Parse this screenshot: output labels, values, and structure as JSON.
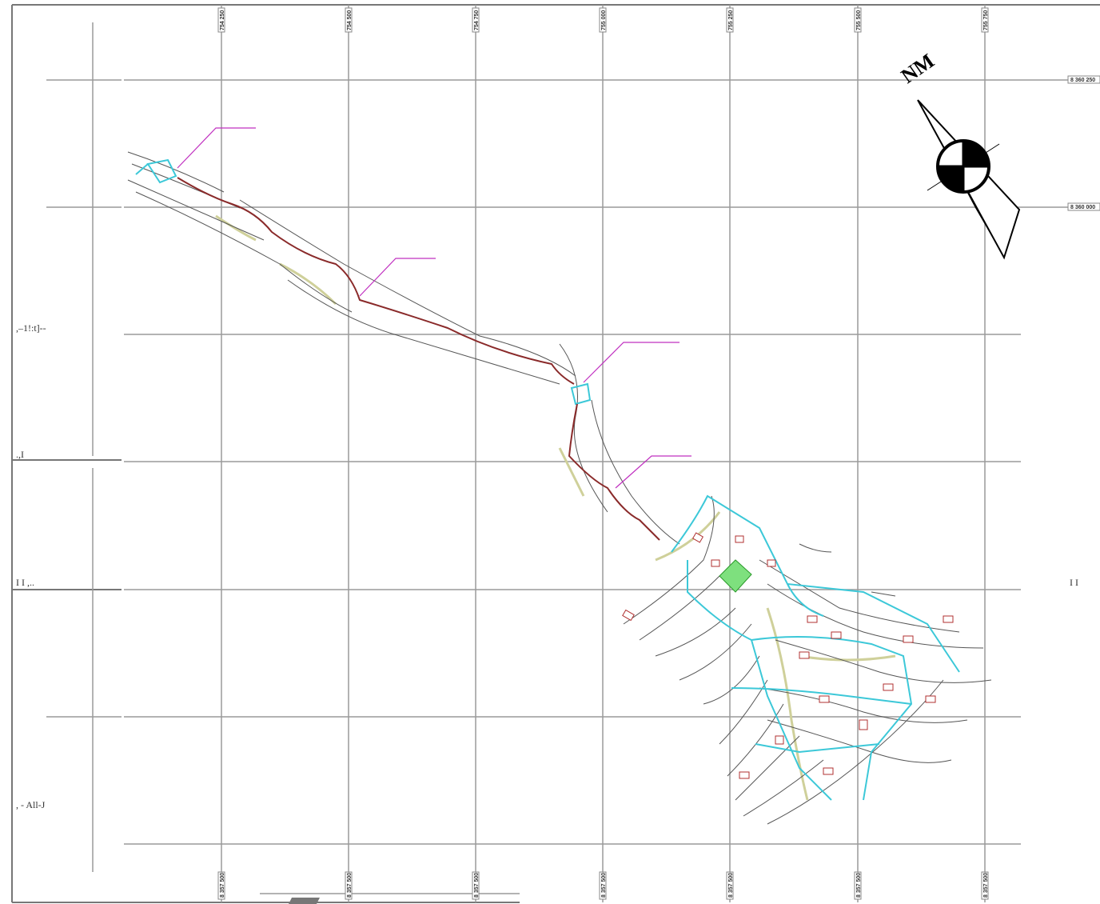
{
  "map": {
    "north_label": "NM",
    "top_labels": [
      "754 250",
      "754 500",
      "754 750",
      "755 000",
      "755 250",
      "755 500",
      "755 750"
    ],
    "bottom_labels": [
      "8 357 500",
      "8 357 500",
      "8 357 500",
      "8 357 500",
      "8 357 500",
      "8 357 500",
      "8 357 500"
    ],
    "right_labels": [
      "8 360 250",
      "8 360 000"
    ],
    "left_labels": [
      ",–1!:t]--",
      ".,I",
      "I I ,..",
      ", - All-J"
    ],
    "right_mark": "I I"
  }
}
